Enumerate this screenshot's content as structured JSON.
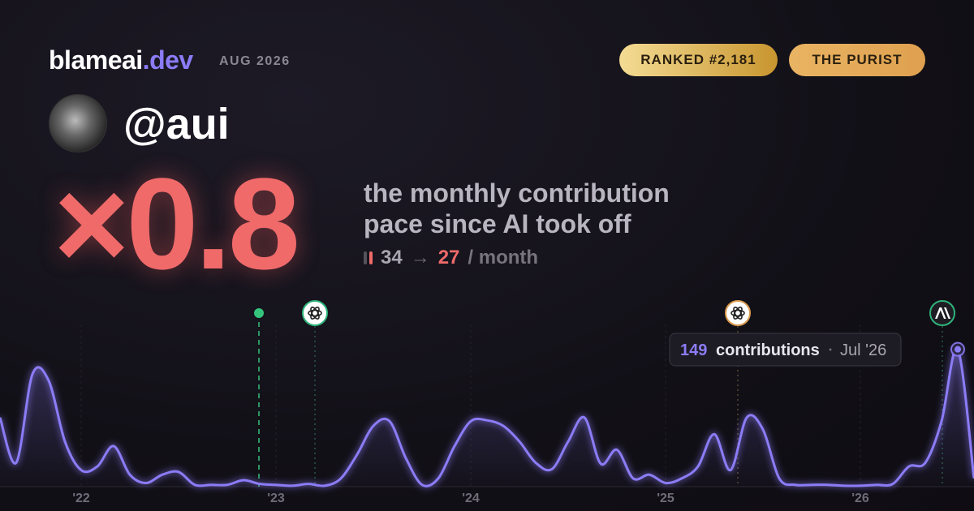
{
  "header": {
    "brand": "blameai",
    "brand_suffix": ".dev",
    "date": "AUG 2026",
    "badges": [
      "RANKED #2,181",
      "THE PURIST"
    ]
  },
  "profile": {
    "handle": "@aui"
  },
  "headline": {
    "multiplier": "×0.8",
    "description": [
      "the monthly contribution",
      "pace since AI took off"
    ],
    "before": 34,
    "arrow": "→",
    "after": 27,
    "unit": "/ month"
  },
  "chart_data": {
    "type": "line",
    "color": "#8b7cf6",
    "categories": [
      null,
      null,
      null,
      null,
      null,
      "'22",
      null,
      null,
      null,
      null,
      null,
      null,
      null,
      null,
      null,
      null,
      null,
      "'23",
      null,
      null,
      null,
      null,
      null,
      null,
      null,
      null,
      null,
      null,
      null,
      "'24",
      null,
      null,
      null,
      null,
      null,
      null,
      null,
      null,
      null,
      null,
      null,
      "'25",
      null,
      null,
      null,
      null,
      null,
      null,
      null,
      null,
      null,
      null,
      null,
      "'26",
      null,
      null,
      null,
      null,
      null,
      null,
      null
    ],
    "values": [
      75,
      26,
      122,
      115,
      49,
      18,
      22,
      44,
      13,
      4,
      13,
      16,
      2,
      2,
      2,
      7,
      3,
      2,
      1,
      3,
      1,
      9,
      35,
      66,
      71,
      31,
      2,
      9,
      44,
      71,
      72,
      66,
      49,
      26,
      19,
      49,
      75,
      25,
      40,
      9,
      13,
      4,
      9,
      22,
      57,
      18,
      75,
      62,
      9,
      2,
      2,
      2,
      1,
      1,
      2,
      3,
      22,
      26,
      71,
      149,
      9
    ],
    "ylim": [
      0,
      176
    ],
    "tooltip": {
      "value": 149,
      "label": "contributions",
      "date": "Jul '26"
    }
  }
}
